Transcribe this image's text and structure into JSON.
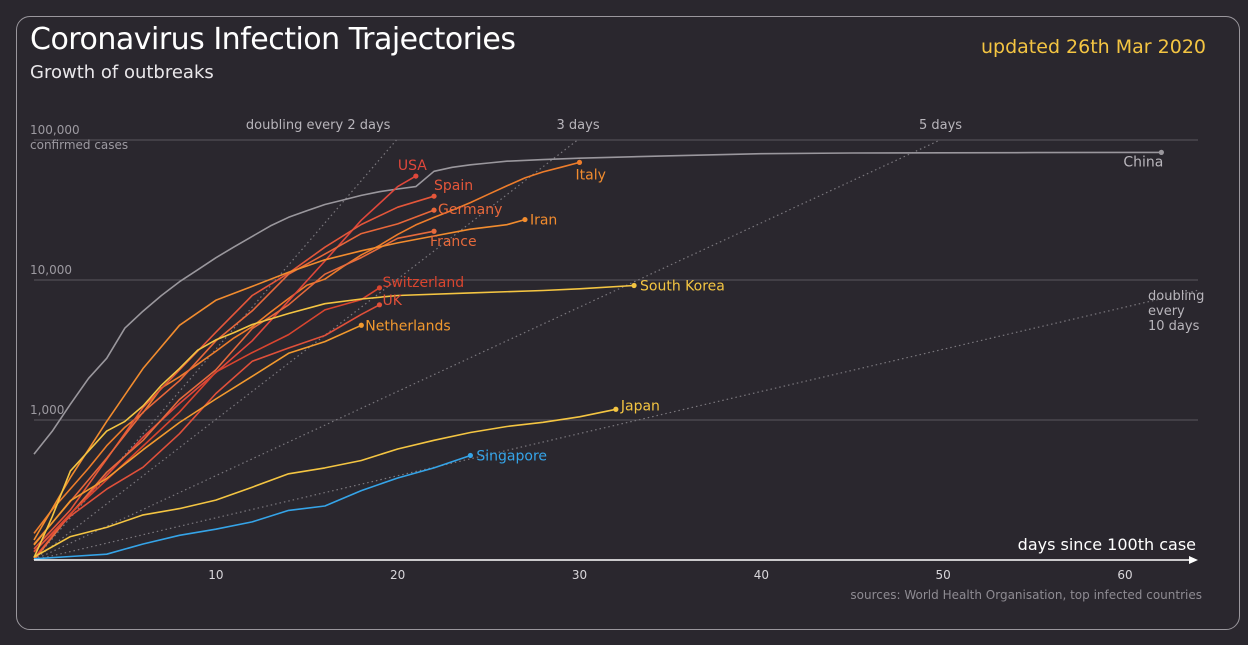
{
  "header": {
    "title": "Coronavirus Infection Trajectories",
    "subtitle": "Growth of outbreaks",
    "updated": "updated 26th Mar 2020"
  },
  "footer": {
    "source": "sources: World Health Organisation, top infected countries"
  },
  "colors": {
    "background": "#2a272e",
    "accent": "#f4c542",
    "gridline": "#5a575e"
  },
  "chart_data": {
    "type": "line",
    "title": "Coronavirus Infection Trajectories",
    "subtitle": "Growth of outbreaks",
    "xlabel": "days since 100th case",
    "ylabel": "confirmed cases",
    "y_scale": "log",
    "xlim": [
      0,
      64
    ],
    "ylim": [
      100,
      100000
    ],
    "x_ticks": [
      10,
      20,
      30,
      40,
      50,
      60
    ],
    "y_ticks": [
      {
        "value": 1000,
        "label": "1,000"
      },
      {
        "value": 10000,
        "label": "10,000"
      },
      {
        "value": 100000,
        "label": "100,000"
      }
    ],
    "y_top_caption": "confirmed cases",
    "doubling_guides": [
      {
        "days": 2,
        "label": "doubling every 2 days"
      },
      {
        "days": 3,
        "label": "3 days"
      },
      {
        "days": 5,
        "label": "5 days"
      },
      {
        "days": 10,
        "label_lines": [
          "doubling",
          "every",
          "10 days"
        ]
      }
    ],
    "series": [
      {
        "name": "China",
        "color": "#9a979d",
        "x": [
          0,
          1,
          2,
          3,
          4,
          5,
          6,
          7,
          8,
          9,
          10,
          11,
          12,
          13,
          14,
          15,
          16,
          17,
          18,
          19,
          20,
          21,
          22,
          23,
          24,
          25,
          26,
          28,
          30,
          35,
          40,
          45,
          50,
          55,
          60,
          62
        ],
        "y": [
          571,
          830,
          1297,
          1985,
          2761,
          4537,
          5997,
          7736,
          9720,
          11821,
          14411,
          17238,
          20471,
          24363,
          28060,
          31211,
          34598,
          37251,
          40235,
          42708,
          44653,
          46472,
          59804,
          63851,
          66492,
          68500,
          70548,
          72436,
          74185,
          77150,
          79824,
          80739,
          81033,
          81285,
          81501,
          81591
        ]
      },
      {
        "name": "Italy",
        "color": "#ee7d2b",
        "x": [
          0,
          1,
          2,
          3,
          4,
          5,
          6,
          7,
          8,
          9,
          10,
          11,
          12,
          13,
          14,
          15,
          16,
          17,
          18,
          19,
          20,
          21,
          22,
          23,
          24,
          25,
          26,
          27,
          28,
          29,
          30
        ],
        "y": [
          155,
          229,
          322,
          453,
          655,
          888,
          1128,
          1694,
          2036,
          2502,
          3089,
          3858,
          4636,
          5883,
          7375,
          9172,
          10149,
          12462,
          15113,
          17660,
          21157,
          24747,
          27980,
          31506,
          35713,
          41035,
          47021,
          53578,
          59138,
          63927,
          69176
        ]
      },
      {
        "name": "USA",
        "color": "#e0473b",
        "x": [
          0,
          2,
          4,
          6,
          8,
          10,
          12,
          14,
          16,
          18,
          19,
          20,
          21
        ],
        "y": [
          103,
          213,
          402,
          755,
          1312,
          2179,
          3680,
          7087,
          13677,
          26747,
          35206,
          46450,
          55231
        ]
      },
      {
        "name": "Spain",
        "color": "#e4563a",
        "x": [
          0,
          2,
          4,
          6,
          8,
          10,
          12,
          14,
          16,
          18,
          20,
          22
        ],
        "y": [
          120,
          228,
          525,
          1231,
          2277,
          4231,
          7753,
          11178,
          17147,
          24926,
          33089,
          39673
        ]
      },
      {
        "name": "Germany",
        "color": "#e8673a",
        "x": [
          0,
          2,
          4,
          6,
          8,
          10,
          12,
          14,
          16,
          18,
          20,
          22
        ],
        "y": [
          130,
          262,
          534,
          1139,
          1908,
          3675,
          6012,
          10999,
          15320,
          21463,
          25150,
          31554
        ]
      },
      {
        "name": "France",
        "color": "#e66a3c",
        "x": [
          0,
          2,
          4,
          6,
          8,
          10,
          12,
          14,
          16,
          18,
          20,
          22
        ],
        "y": [
          100,
          212,
          423,
          716,
          1402,
          2281,
          4499,
          6650,
          10995,
          14459,
          19856,
          22302
        ]
      },
      {
        "name": "Iran",
        "color": "#f28c2e",
        "x": [
          0,
          2,
          4,
          6,
          8,
          10,
          12,
          14,
          16,
          18,
          20,
          22,
          24,
          26,
          27
        ],
        "y": [
          139,
          388,
          978,
          2336,
          4747,
          7161,
          9000,
          11364,
          13938,
          16169,
          18407,
          20610,
          23049,
          24811,
          27017
        ]
      },
      {
        "name": "Switzerland",
        "color": "#d9452f",
        "x": [
          0,
          2,
          4,
          6,
          8,
          10,
          12,
          14,
          16,
          18,
          19
        ],
        "y": [
          114,
          214,
          374,
          652,
          1139,
          2200,
          3028,
          4075,
          6113,
          7245,
          8789
        ]
      },
      {
        "name": "UK",
        "color": "#e0503a",
        "x": [
          0,
          2,
          4,
          6,
          8,
          10,
          12,
          14,
          16,
          18,
          19
        ],
        "y": [
          115,
          206,
          321,
          460,
          798,
          1543,
          2626,
          3269,
          4014,
          5683,
          6650
        ]
      },
      {
        "name": "Netherlands",
        "color": "#f39a2e",
        "x": [
          0,
          2,
          4,
          6,
          8,
          10,
          12,
          14,
          16,
          18
        ],
        "y": [
          128,
          265,
          382,
          614,
          959,
          1413,
          2051,
          2994,
          3631,
          4749
        ]
      },
      {
        "name": "South Korea",
        "color": "#f4c542",
        "x": [
          0,
          1,
          2,
          3,
          4,
          5,
          6,
          7,
          8,
          9,
          10,
          11,
          12,
          14,
          16,
          18,
          20,
          24,
          28,
          30,
          33
        ],
        "y": [
          104,
          204,
          433,
          602,
          833,
          977,
          1261,
          1766,
          2337,
          3150,
          3736,
          4212,
          4812,
          5766,
          6767,
          7313,
          7755,
          8086,
          8413,
          8652,
          9137
        ]
      },
      {
        "name": "Japan",
        "color": "#f4c542",
        "x": [
          0,
          2,
          4,
          6,
          8,
          10,
          12,
          14,
          16,
          18,
          20,
          22,
          24,
          26,
          28,
          30,
          32
        ],
        "y": [
          105,
          147,
          171,
          210,
          233,
          268,
          331,
          413,
          455,
          514,
          621,
          716,
          814,
          899,
          963,
          1054,
          1193
        ]
      },
      {
        "name": "Singapore",
        "color": "#35a4e8",
        "x": [
          0,
          2,
          4,
          6,
          8,
          10,
          12,
          14,
          16,
          18,
          20,
          22,
          24
        ],
        "y": [
          102,
          106,
          110,
          130,
          150,
          166,
          187,
          226,
          243,
          313,
          385,
          455,
          558
        ]
      }
    ],
    "series_labels": [
      {
        "name": "China",
        "color": "#b9b6bc"
      },
      {
        "name": "Italy",
        "color": "#f28c2e"
      },
      {
        "name": "USA",
        "color": "#e0473b"
      },
      {
        "name": "Spain",
        "color": "#e4563a"
      },
      {
        "name": "Germany",
        "color": "#e8673a"
      },
      {
        "name": "France",
        "color": "#e66a3c"
      },
      {
        "name": "Iran",
        "color": "#f28c2e"
      },
      {
        "name": "Switzerland",
        "color": "#d9452f"
      },
      {
        "name": "UK",
        "color": "#e0503a"
      },
      {
        "name": "Netherlands",
        "color": "#f39a2e"
      },
      {
        "name": "South Korea",
        "color": "#f4c542"
      },
      {
        "name": "Japan",
        "color": "#f4c542"
      },
      {
        "name": "Singapore",
        "color": "#35a4e8"
      }
    ],
    "grid": true,
    "legend": "direct-labels"
  }
}
